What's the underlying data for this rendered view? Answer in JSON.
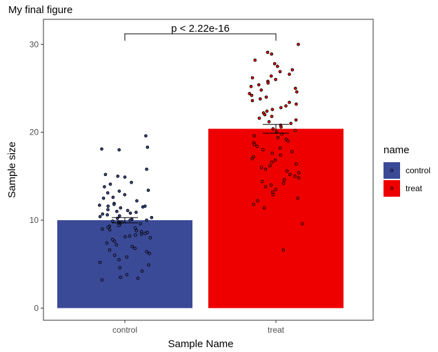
{
  "chart_data": {
    "type": "bar",
    "title": "My final figure",
    "xlabel": "Sample Name",
    "ylabel": "Sample size",
    "categories": [
      "control",
      "treat"
    ],
    "values": [
      10.0,
      20.4
    ],
    "error_halfwidth": [
      0.3,
      0.5
    ],
    "ylim": [
      -1.5,
      32.5
    ],
    "yticks": [
      0,
      10,
      20,
      30
    ],
    "grid": false,
    "legend": {
      "title": "name",
      "placement": "right",
      "entries": [
        {
          "label": "control",
          "color": "#3b4a97"
        },
        {
          "label": "treat",
          "color": "#ee0000"
        }
      ]
    },
    "annotation": {
      "text": "p < 2.22e-16",
      "from": "control",
      "to": "treat",
      "y": 31.2
    },
    "points": {
      "control": [
        19.6,
        18.3,
        18.1,
        18.0,
        15.8,
        15.2,
        15.0,
        14.9,
        14.3,
        14.1,
        13.8,
        13.4,
        13.3,
        13.1,
        12.9,
        12.6,
        12.5,
        12.2,
        11.9,
        11.8,
        11.7,
        11.6,
        11.6,
        11.5,
        11.4,
        11.2,
        11.1,
        11.0,
        10.9,
        10.8,
        10.7,
        10.6,
        10.5,
        10.4,
        10.3,
        10.2,
        10.1,
        10.0,
        10.0,
        9.9,
        9.8,
        9.8,
        9.7,
        9.6,
        9.5,
        9.4,
        9.3,
        9.2,
        9.1,
        9.0,
        8.9,
        8.8,
        8.7,
        8.6,
        8.5,
        8.4,
        8.3,
        8.2,
        8.1,
        8.0,
        7.8,
        7.6,
        7.4,
        7.2,
        7.0,
        6.8,
        6.6,
        6.4,
        6.2,
        6.0,
        5.8,
        5.5,
        5.2,
        4.9,
        4.6,
        4.2,
        3.8,
        3.5,
        3.2,
        3.4
      ],
      "treat": [
        30.0,
        29.1,
        28.9,
        28.2,
        27.8,
        27.5,
        27.1,
        26.9,
        26.6,
        26.4,
        26.2,
        26.0,
        25.8,
        25.6,
        25.4,
        25.2,
        25.0,
        24.8,
        24.6,
        24.4,
        24.2,
        24.0,
        23.8,
        23.6,
        23.4,
        23.2,
        23.0,
        22.8,
        22.6,
        22.4,
        22.2,
        22.0,
        21.8,
        21.6,
        21.4,
        21.2,
        21.0,
        20.8,
        20.6,
        20.4,
        20.2,
        20.0,
        19.8,
        19.6,
        19.4,
        19.2,
        19.0,
        18.8,
        18.6,
        18.4,
        18.2,
        18.0,
        17.8,
        17.6,
        17.4,
        17.2,
        17.0,
        16.8,
        16.6,
        16.4,
        16.2,
        16.0,
        15.8,
        15.6,
        15.4,
        15.2,
        15.0,
        14.8,
        14.6,
        14.4,
        14.2,
        14.0,
        13.8,
        13.5,
        13.2,
        12.9,
        12.5,
        12.2,
        11.8,
        11.4,
        9.6,
        6.6
      ]
    }
  }
}
